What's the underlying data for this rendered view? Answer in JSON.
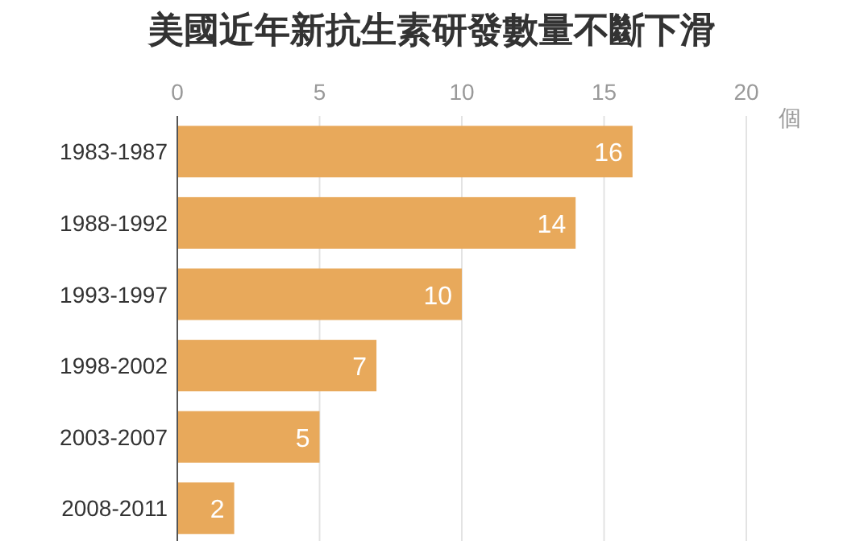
{
  "chart_data": {
    "type": "bar",
    "orientation": "horizontal",
    "title": "美國近年新抗生素研發數量不斷下滑",
    "xlabel": "個",
    "categories": [
      "1983-1987",
      "1988-1992",
      "1993-1997",
      "1998-2002",
      "2003-2007",
      "2008-2011"
    ],
    "values": [
      16,
      14,
      10,
      7,
      5,
      2
    ],
    "color": "#e8a95b",
    "xlim": [
      0,
      20
    ],
    "xticks": [
      0,
      5,
      10,
      15,
      20
    ],
    "grid": "x",
    "data_labels": true
  }
}
